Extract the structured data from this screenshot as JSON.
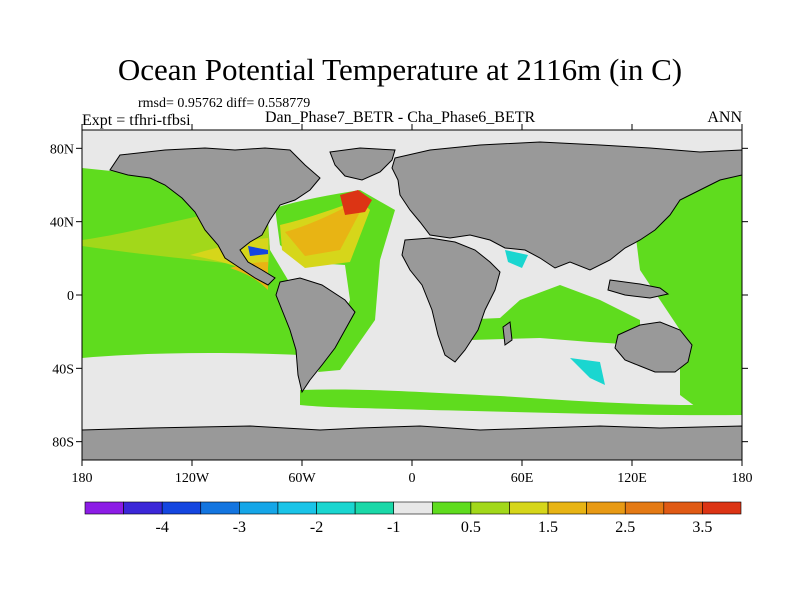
{
  "chart_data": {
    "type": "heatmap",
    "title": "Ocean Potential Temperature at 2116m (in C)",
    "stats_text": "rmsd= 0.95762 diff= 0.558779",
    "expt_text": "Expt = tfhri-tfbsi",
    "subtitle": "Dan_Phase7_BETR - Cha_Phase6_BETR",
    "season": "ANN",
    "projection": "cylindrical equidistant",
    "lon_range": [
      -180,
      180
    ],
    "lat_range": [
      -90,
      90
    ],
    "x_ticks": [
      {
        "value": -180,
        "label": "180"
      },
      {
        "value": -120,
        "label": "120W"
      },
      {
        "value": -60,
        "label": "60W"
      },
      {
        "value": 0,
        "label": "0"
      },
      {
        "value": 60,
        "label": "60E"
      },
      {
        "value": 120,
        "label": "120E"
      },
      {
        "value": 180,
        "label": "180"
      }
    ],
    "y_ticks": [
      {
        "value": 80,
        "label": "80N"
      },
      {
        "value": 40,
        "label": "40N"
      },
      {
        "value": 0,
        "label": "0"
      },
      {
        "value": -40,
        "label": "40S"
      },
      {
        "value": -80,
        "label": "80S"
      }
    ],
    "colorbar": {
      "bin_edges": [
        -4.5,
        -4,
        -3.5,
        -3,
        -2.5,
        -2,
        -1.5,
        -1,
        -0.5,
        0.5,
        1,
        1.5,
        2,
        2.5,
        3,
        3.5,
        4
      ],
      "colors": [
        "#8c1ce6",
        "#3b27d8",
        "#1446e0",
        "#1375e0",
        "#15a6e8",
        "#1ac4e8",
        "#1ad6d0",
        "#1ad8a8",
        "#e8e8e8",
        "#5fdc1e",
        "#a2d81a",
        "#d6d61a",
        "#e8b414",
        "#e89a14",
        "#e47a14",
        "#e05a14",
        "#dc3414"
      ],
      "labels": [
        {
          "value": -4,
          "label": "-4"
        },
        {
          "value": -3,
          "label": "-3"
        },
        {
          "value": -2,
          "label": "-2"
        },
        {
          "value": -1,
          "label": "-1"
        },
        {
          "value": 0.5,
          "label": "0.5"
        },
        {
          "value": 1.5,
          "label": "1.5"
        },
        {
          "value": 2.5,
          "label": "2.5"
        },
        {
          "value": 3.5,
          "label": "3.5"
        }
      ]
    },
    "colors": {
      "land": "#999999",
      "near_zero": "#e8e8e8",
      "coast": "#000000"
    }
  }
}
